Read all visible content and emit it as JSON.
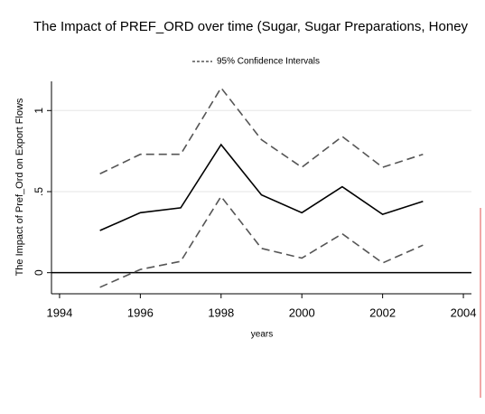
{
  "chart_data": {
    "type": "line",
    "title": "The Impact of PREF_ORD over time (Sugar, Sugar Preparations, Honey",
    "legend": "95% Confidence Intervals",
    "xlabel": "years",
    "ylabel": "The Impact of Pref_Ord on Export Flows",
    "x": [
      1995,
      1996,
      1997,
      1998,
      1999,
      2000,
      2001,
      2002,
      2003
    ],
    "series": [
      {
        "color": "#000000",
        "dash": false,
        "values": [
          0.26,
          0.37,
          0.4,
          0.79,
          0.48,
          0.37,
          0.53,
          0.36,
          0.44
        ]
      },
      {
        "color": "#555555",
        "dash": true,
        "values": [
          0.61,
          0.73,
          0.73,
          1.14,
          0.82,
          0.65,
          0.84,
          0.65,
          0.73
        ]
      },
      {
        "color": "#555555",
        "dash": true,
        "values": [
          -0.09,
          0.02,
          0.07,
          0.47,
          0.15,
          0.09,
          0.24,
          0.06,
          0.17
        ]
      }
    ],
    "xlim": [
      1993.8,
      2004.2
    ],
    "xticks": [
      1994,
      1996,
      1998,
      2000,
      2002,
      2004
    ],
    "ylim": [
      -0.13,
      1.18
    ],
    "yticks": [
      0,
      {
        "value": 0.5,
        "label": ".5"
      },
      1
    ],
    "hline": 0,
    "grid": true
  }
}
